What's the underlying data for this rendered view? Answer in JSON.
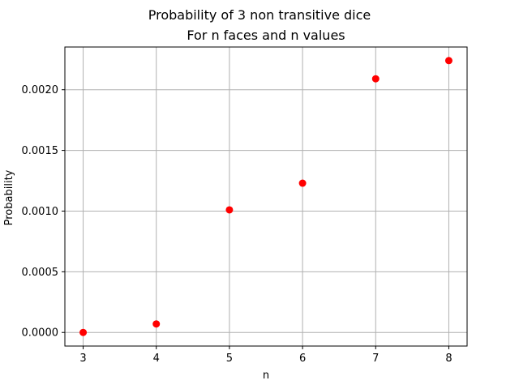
{
  "chart_data": {
    "type": "scatter",
    "title": "Probability of 3 non transitive dice",
    "subtitle": "For n faces and n values",
    "xlabel": "n",
    "ylabel": "Probability",
    "x": [
      3,
      4,
      5,
      6,
      7,
      8
    ],
    "y": [
      0.0,
      7e-05,
      0.00101,
      0.00123,
      0.00209,
      0.00224
    ],
    "xlim": [
      2.75,
      8.25
    ],
    "ylim": [
      -0.000112,
      0.002352
    ],
    "x_ticks": [
      3,
      4,
      5,
      6,
      7,
      8
    ],
    "x_tick_labels": [
      "3",
      "4",
      "5",
      "6",
      "7",
      "8"
    ],
    "y_ticks": [
      0.0,
      0.0005,
      0.001,
      0.0015,
      0.002
    ],
    "y_tick_labels": [
      "0.0000",
      "0.0005",
      "0.0010",
      "0.0015",
      "0.0020"
    ],
    "grid": true,
    "marker_color": "#ff0000",
    "grid_color": "#b0b0b0"
  }
}
